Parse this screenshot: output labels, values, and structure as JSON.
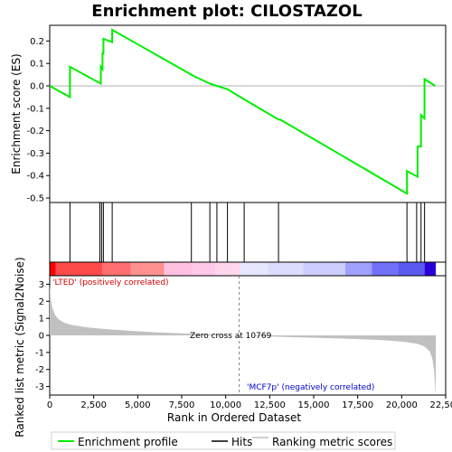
{
  "chart_data": {
    "type": "line",
    "title": "Enrichment plot: CILOSTAZOL",
    "xlabel": "Rank in Ordered Dataset",
    "es_panel": {
      "ylabel": "Enrichment score (ES)",
      "ylim": [
        -0.52,
        0.27
      ],
      "yticks": [
        -0.5,
        -0.4,
        -0.3,
        -0.2,
        -0.1,
        0.0,
        0.1,
        0.2
      ],
      "ytick_labels": [
        "-0.5",
        "-0.4",
        "-0.3",
        "-0.2",
        "-0.1",
        "0.0",
        "0.1",
        "0.2"
      ],
      "line_color": "#00ee00",
      "points": [
        [
          0,
          0.0
        ],
        [
          1150,
          -0.05
        ],
        [
          1150,
          0.085
        ],
        [
          2900,
          0.01
        ],
        [
          2900,
          0.085
        ],
        [
          3000,
          0.075
        ],
        [
          3000,
          0.15
        ],
        [
          3050,
          0.14
        ],
        [
          3050,
          0.21
        ],
        [
          3550,
          0.195
        ],
        [
          3550,
          0.25
        ],
        [
          8050,
          0.05
        ],
        [
          8150,
          0.045
        ],
        [
          9100,
          0.01
        ],
        [
          9500,
          0.0
        ],
        [
          10100,
          -0.015
        ],
        [
          11050,
          -0.06
        ],
        [
          13000,
          -0.15
        ],
        [
          13100,
          -0.15
        ],
        [
          20300,
          -0.48
        ],
        [
          20300,
          -0.38
        ],
        [
          20900,
          -0.405
        ],
        [
          20900,
          -0.27
        ],
        [
          21100,
          -0.27
        ],
        [
          21100,
          -0.13
        ],
        [
          21300,
          -0.145
        ],
        [
          21300,
          0.03
        ],
        [
          21900,
          0.0
        ]
      ]
    },
    "hits": [
      1150,
      2850,
      2950,
      3050,
      3550,
      8050,
      9100,
      9500,
      10100,
      11050,
      13000,
      20300,
      20850,
      21100,
      21300
    ],
    "ranking_panel": {
      "ylabel": "Ranked list metric (Signal2Noise)",
      "ylim": [
        -3.5,
        3.5
      ],
      "yticks": [
        -3,
        -2,
        -1,
        0,
        1,
        2,
        3
      ],
      "ytick_labels": [
        "-3",
        "-2",
        "-1",
        "0",
        "1",
        "2",
        "3"
      ],
      "zero_cross": 10769,
      "zero_cross_label": "Zero cross at 10769",
      "pos_label": "'LTED' (positively correlated)",
      "neg_label": "'MCF7p' (negatively correlated)",
      "fill_color": "#c0c0c0",
      "curve": [
        [
          0,
          3.0
        ],
        [
          50,
          2.2
        ],
        [
          150,
          1.6
        ],
        [
          300,
          1.2
        ],
        [
          500,
          0.95
        ],
        [
          800,
          0.75
        ],
        [
          1200,
          0.62
        ],
        [
          2000,
          0.48
        ],
        [
          3000,
          0.38
        ],
        [
          4500,
          0.27
        ],
        [
          6000,
          0.18
        ],
        [
          8000,
          0.1
        ],
        [
          10769,
          0.0
        ],
        [
          13000,
          -0.08
        ],
        [
          15000,
          -0.14
        ],
        [
          17000,
          -0.2
        ],
        [
          18500,
          -0.26
        ],
        [
          19500,
          -0.32
        ],
        [
          20300,
          -0.4
        ],
        [
          20900,
          -0.5
        ],
        [
          21300,
          -0.65
        ],
        [
          21600,
          -0.95
        ],
        [
          21750,
          -1.4
        ],
        [
          21850,
          -2.1
        ],
        [
          21920,
          -3.3
        ],
        [
          21940,
          -3.5
        ]
      ]
    },
    "x_max": 21940,
    "xlim": [
      0,
      22500
    ],
    "xticks": [
      0,
      2500,
      5000,
      7500,
      10000,
      12500,
      15000,
      17500,
      20000,
      22500
    ],
    "xtick_labels": [
      "0",
      "2,500",
      "5,000",
      "7,500",
      "10,000",
      "12,500",
      "15,000",
      "17,500",
      "20,000",
      "22,500"
    ],
    "color_bar": [
      {
        "from": 0,
        "to": 350,
        "color": "#ff0000"
      },
      {
        "from": 350,
        "to": 3000,
        "color": "#ff4a4a"
      },
      {
        "from": 3000,
        "to": 4600,
        "color": "#ff6f6f"
      },
      {
        "from": 4600,
        "to": 6500,
        "color": "#ff9090"
      },
      {
        "from": 6500,
        "to": 8100,
        "color": "#ffc0e0"
      },
      {
        "from": 8100,
        "to": 9400,
        "color": "#ffc8e8"
      },
      {
        "from": 9400,
        "to": 10800,
        "color": "#ffd6ec"
      },
      {
        "from": 10800,
        "to": 12400,
        "color": "#e6e6ff"
      },
      {
        "from": 12400,
        "to": 14400,
        "color": "#dcdcfc"
      },
      {
        "from": 14400,
        "to": 16800,
        "color": "#ccccff"
      },
      {
        "from": 16800,
        "to": 18300,
        "color": "#a0a0ff"
      },
      {
        "from": 18300,
        "to": 19800,
        "color": "#7070f8"
      },
      {
        "from": 19800,
        "to": 21300,
        "color": "#5a5af0"
      },
      {
        "from": 21300,
        "to": 21940,
        "color": "#2a00d8"
      }
    ],
    "legend": [
      {
        "label": "Enrichment profile",
        "color": "#00ee00"
      },
      {
        "label": "Hits",
        "color": "#000000"
      },
      {
        "label": "Ranking metric scores",
        "color": "#c0c0c0"
      }
    ],
    "pos_label_color": "#cc0000",
    "neg_label_color": "#0000cc"
  }
}
